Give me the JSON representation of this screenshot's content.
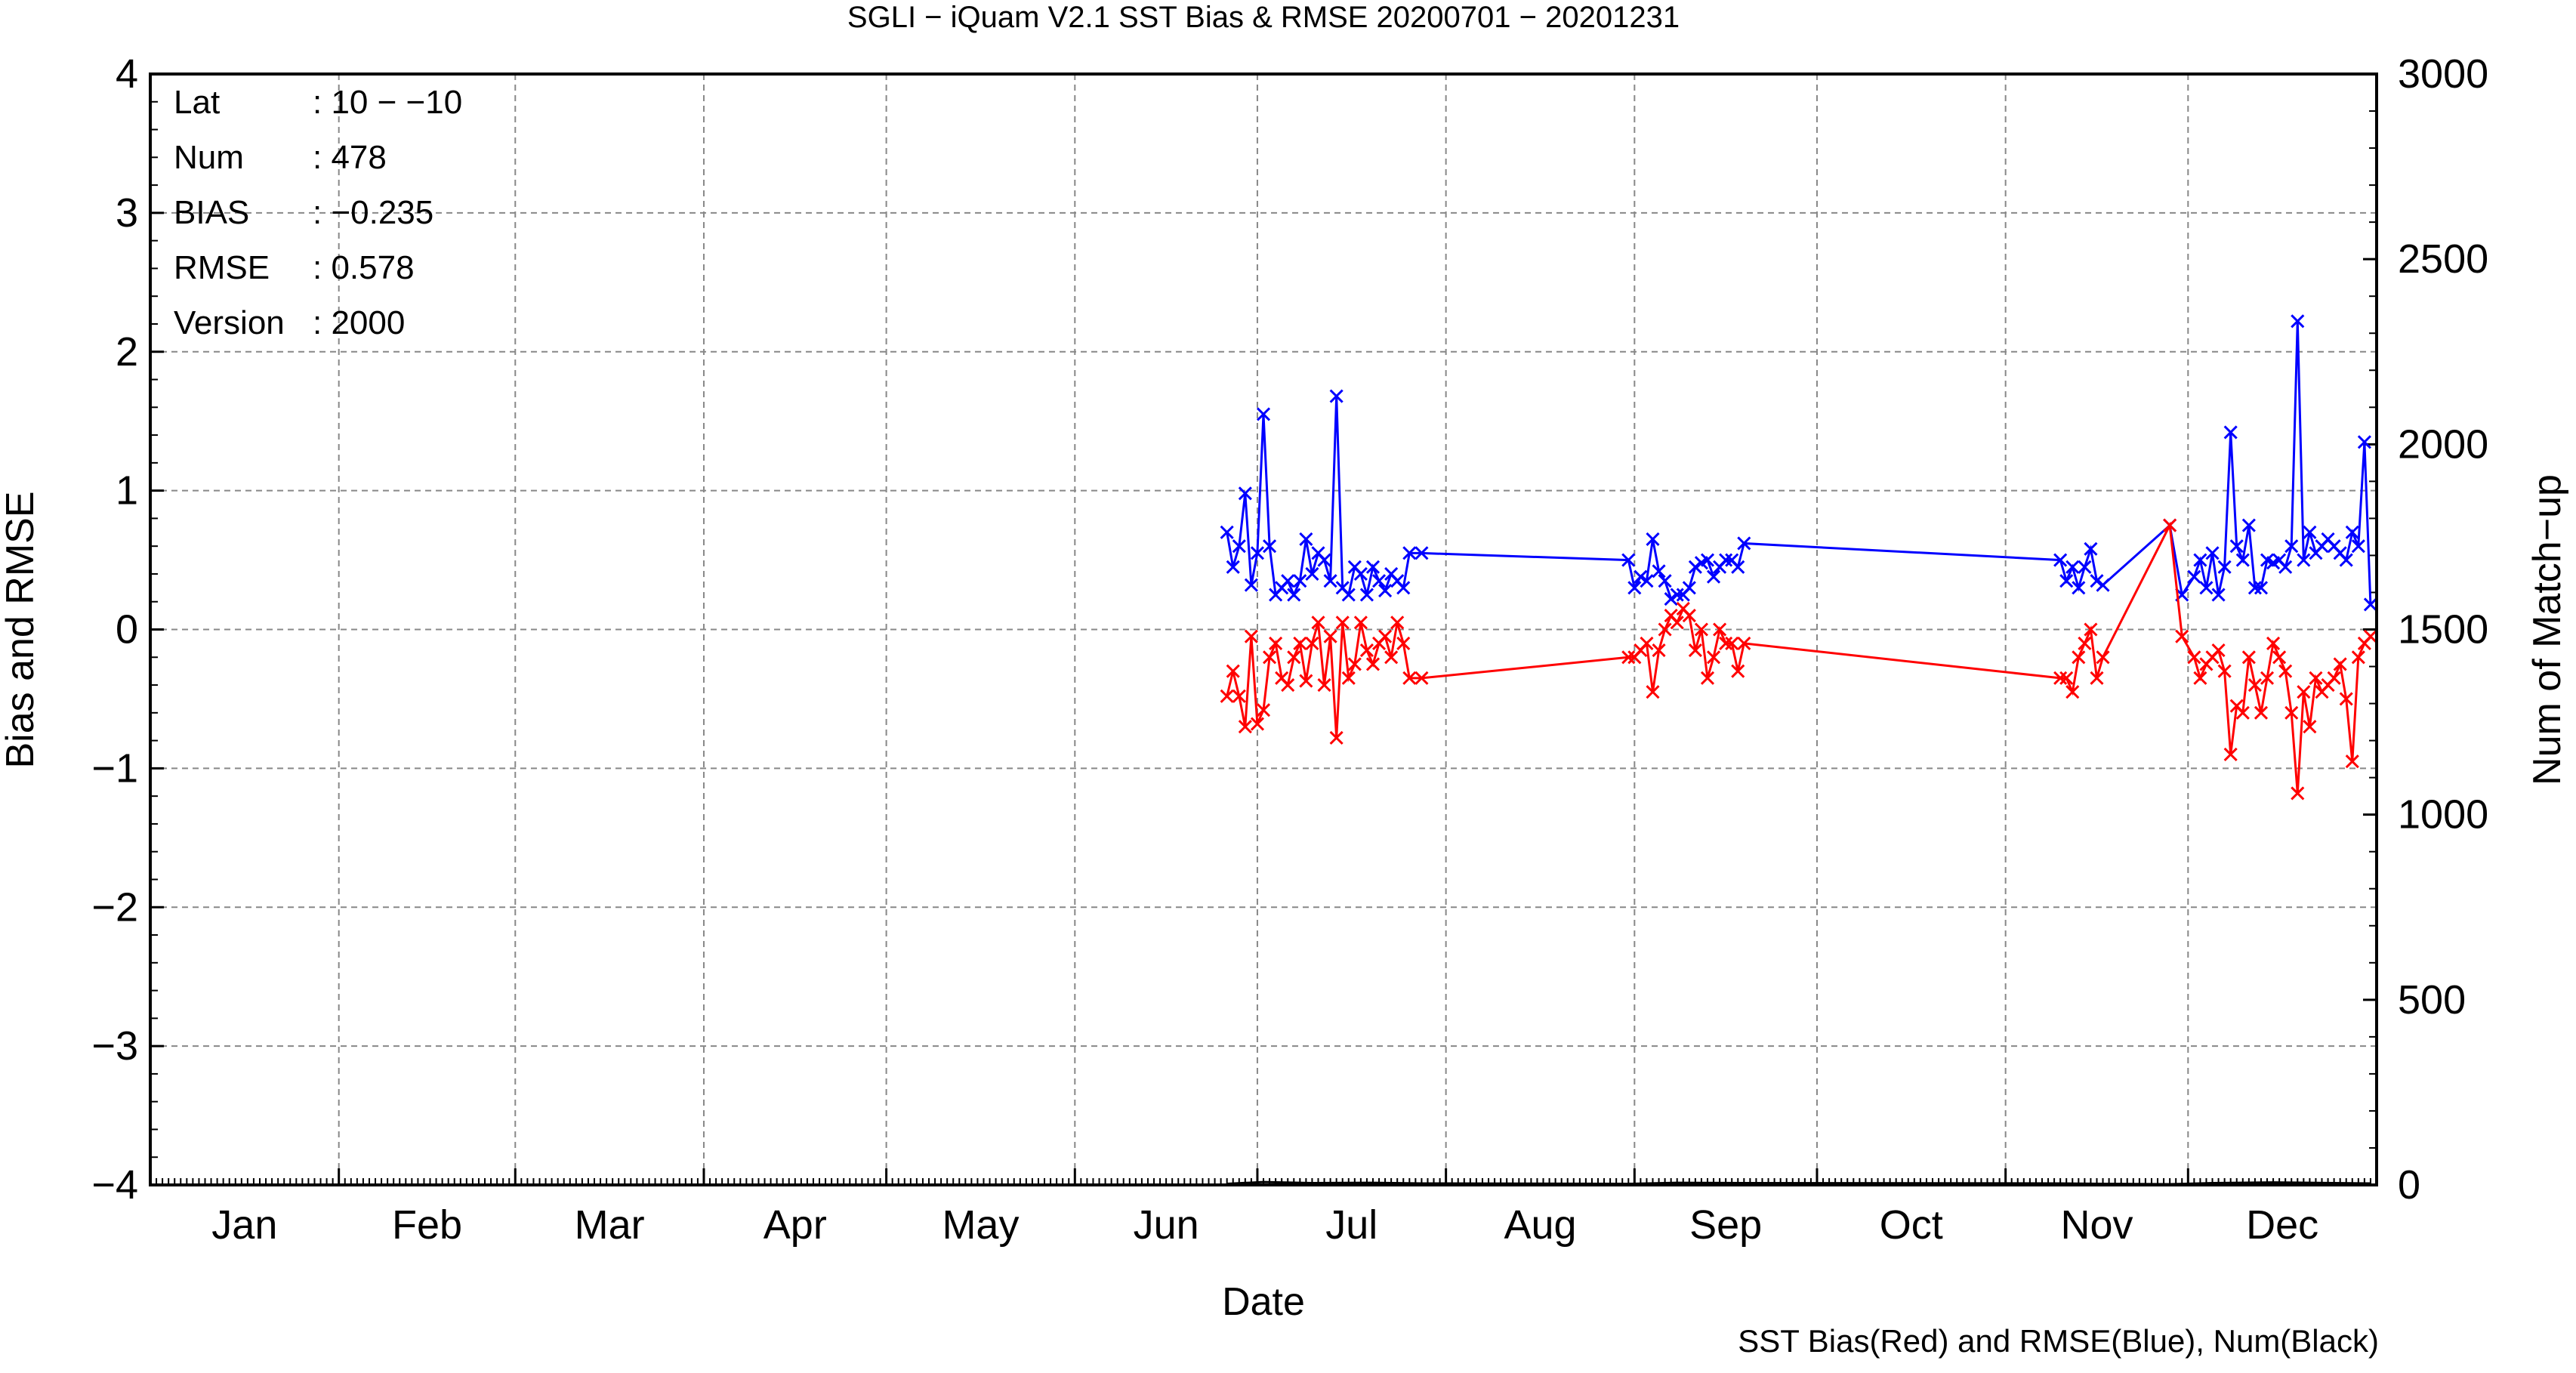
{
  "chart_data": {
    "type": "line",
    "title": "SGLI − iQuam V2.1 SST Bias & RMSE 20200701 − 20201231",
    "xlabel": "Date",
    "ylabel": "Bias and RMSE",
    "y2label": "Num of Match−up",
    "footer": "SST Bias(Red) and RMSE(Blue), Num(Black)",
    "x_ticks": [
      "Jan",
      "Feb",
      "Mar",
      "Apr",
      "May",
      "Jun",
      "Jul",
      "Aug",
      "Sep",
      "Oct",
      "Nov",
      "Dec"
    ],
    "y_ticks": [
      "−4",
      "−3",
      "−2",
      "−1",
      "0",
      "1",
      "2",
      "3",
      "4"
    ],
    "y2_ticks": [
      "0",
      "500",
      "1000",
      "1500",
      "2000",
      "2500",
      "3000"
    ],
    "ylim": [
      -4,
      4
    ],
    "y2lim": [
      0,
      3000
    ],
    "grid": true,
    "info": [
      {
        "key": "Lat",
        "value": ": 10 − −10"
      },
      {
        "key": "Num",
        "value": ": 478"
      },
      {
        "key": "BIAS",
        "value": ": −0.235"
      },
      {
        "key": "RMSE",
        "value": ": 0.578"
      },
      {
        "key": "Version",
        "value": ": 2000"
      }
    ],
    "series": [
      {
        "color": "#0000ff",
        "x": [
          "2020-06-26",
          "2020-06-27",
          "2020-06-28",
          "2020-06-29",
          "2020-06-30",
          "2020-07-01",
          "2020-07-02",
          "2020-07-03",
          "2020-07-04",
          "2020-07-05",
          "2020-07-06",
          "2020-07-07",
          "2020-07-08",
          "2020-07-09",
          "2020-07-10",
          "2020-07-11",
          "2020-07-12",
          "2020-07-13",
          "2020-07-14",
          "2020-07-15",
          "2020-07-16",
          "2020-07-17",
          "2020-07-18",
          "2020-07-19",
          "2020-07-20",
          "2020-07-21",
          "2020-07-22",
          "2020-07-23",
          "2020-07-24",
          "2020-07-25",
          "2020-07-26",
          "2020-07-28",
          "2020-08-31",
          "2020-09-01",
          "2020-09-02",
          "2020-09-03",
          "2020-09-04",
          "2020-09-05",
          "2020-09-06",
          "2020-09-07",
          "2020-09-08",
          "2020-09-09",
          "2020-09-10",
          "2020-09-11",
          "2020-09-12",
          "2020-09-13",
          "2020-09-14",
          "2020-09-15",
          "2020-09-16",
          "2020-09-17",
          "2020-09-18",
          "2020-09-19",
          "2020-11-10",
          "2020-11-11",
          "2020-11-12",
          "2020-11-13",
          "2020-11-14",
          "2020-11-15",
          "2020-11-16",
          "2020-11-17",
          "2020-11-28",
          "2020-11-30",
          "2020-12-02",
          "2020-12-03",
          "2020-12-04",
          "2020-12-05",
          "2020-12-06",
          "2020-12-07",
          "2020-12-08",
          "2020-12-09",
          "2020-12-10",
          "2020-12-11",
          "2020-12-12",
          "2020-12-13",
          "2020-12-14",
          "2020-12-15",
          "2020-12-16",
          "2020-12-17",
          "2020-12-18",
          "2020-12-19",
          "2020-12-20",
          "2020-12-21",
          "2020-12-22",
          "2020-12-23",
          "2020-12-24",
          "2020-12-25",
          "2020-12-26",
          "2020-12-27",
          "2020-12-28",
          "2020-12-29",
          "2020-12-30",
          "2020-12-31"
        ],
        "values": [
          0.7,
          0.45,
          0.6,
          0.98,
          0.32,
          0.55,
          1.55,
          0.6,
          0.25,
          0.3,
          0.35,
          0.25,
          0.35,
          0.65,
          0.4,
          0.55,
          0.5,
          0.35,
          1.68,
          0.3,
          0.25,
          0.45,
          0.4,
          0.25,
          0.45,
          0.35,
          0.28,
          0.4,
          0.35,
          0.3,
          0.55,
          0.55,
          0.5,
          0.3,
          0.38,
          0.35,
          0.65,
          0.42,
          0.35,
          0.22,
          0.25,
          0.25,
          0.3,
          0.45,
          0.48,
          0.5,
          0.38,
          0.45,
          0.5,
          0.5,
          0.45,
          0.62,
          0.5,
          0.35,
          0.45,
          0.3,
          0.45,
          0.58,
          0.35,
          0.32,
          0.75,
          0.25,
          0.38,
          0.5,
          0.3,
          0.55,
          0.25,
          0.45,
          1.42,
          0.6,
          0.5,
          0.75,
          0.3,
          0.3,
          0.5,
          0.48,
          0.5,
          0.45,
          0.6,
          2.22,
          0.5,
          0.7,
          0.55,
          0.6,
          0.65,
          0.6,
          0.55,
          0.5,
          0.7,
          0.6,
          1.35,
          0.18
        ]
      },
      {
        "color": "#ff0000",
        "x": [
          "2020-06-26",
          "2020-06-27",
          "2020-06-28",
          "2020-06-29",
          "2020-06-30",
          "2020-07-01",
          "2020-07-02",
          "2020-07-03",
          "2020-07-04",
          "2020-07-05",
          "2020-07-06",
          "2020-07-07",
          "2020-07-08",
          "2020-07-09",
          "2020-07-10",
          "2020-07-11",
          "2020-07-12",
          "2020-07-13",
          "2020-07-14",
          "2020-07-15",
          "2020-07-16",
          "2020-07-17",
          "2020-07-18",
          "2020-07-19",
          "2020-07-20",
          "2020-07-21",
          "2020-07-22",
          "2020-07-23",
          "2020-07-24",
          "2020-07-25",
          "2020-07-26",
          "2020-07-28",
          "2020-08-31",
          "2020-09-01",
          "2020-09-02",
          "2020-09-03",
          "2020-09-04",
          "2020-09-05",
          "2020-09-06",
          "2020-09-07",
          "2020-09-08",
          "2020-09-09",
          "2020-09-10",
          "2020-09-11",
          "2020-09-12",
          "2020-09-13",
          "2020-09-14",
          "2020-09-15",
          "2020-09-16",
          "2020-09-17",
          "2020-09-18",
          "2020-09-19",
          "2020-11-10",
          "2020-11-11",
          "2020-11-12",
          "2020-11-13",
          "2020-11-14",
          "2020-11-15",
          "2020-11-16",
          "2020-11-17",
          "2020-11-28",
          "2020-11-30",
          "2020-12-02",
          "2020-12-03",
          "2020-12-04",
          "2020-12-05",
          "2020-12-06",
          "2020-12-07",
          "2020-12-08",
          "2020-12-09",
          "2020-12-10",
          "2020-12-11",
          "2020-12-12",
          "2020-12-13",
          "2020-12-14",
          "2020-12-15",
          "2020-12-16",
          "2020-12-17",
          "2020-12-18",
          "2020-12-19",
          "2020-12-20",
          "2020-12-21",
          "2020-12-22",
          "2020-12-23",
          "2020-12-24",
          "2020-12-25",
          "2020-12-26",
          "2020-12-27",
          "2020-12-28",
          "2020-12-29",
          "2020-12-30",
          "2020-12-31"
        ],
        "values": [
          -0.48,
          -0.3,
          -0.48,
          -0.7,
          -0.05,
          -0.68,
          -0.58,
          -0.2,
          -0.1,
          -0.35,
          -0.4,
          -0.2,
          -0.1,
          -0.37,
          -0.1,
          0.05,
          -0.4,
          -0.05,
          -0.78,
          0.05,
          -0.35,
          -0.25,
          0.05,
          -0.15,
          -0.25,
          -0.1,
          -0.05,
          -0.2,
          0.05,
          -0.1,
          -0.35,
          -0.35,
          -0.2,
          -0.2,
          -0.15,
          -0.1,
          -0.45,
          -0.15,
          0.0,
          0.1,
          0.05,
          0.15,
          0.1,
          -0.15,
          0.0,
          -0.35,
          -0.2,
          0.0,
          -0.1,
          -0.1,
          -0.3,
          -0.1,
          -0.35,
          -0.35,
          -0.45,
          -0.2,
          -0.1,
          0.0,
          -0.35,
          -0.2,
          0.75,
          -0.05,
          -0.2,
          -0.35,
          -0.25,
          -0.2,
          -0.15,
          -0.3,
          -0.9,
          -0.55,
          -0.6,
          -0.2,
          -0.4,
          -0.6,
          -0.35,
          -0.1,
          -0.2,
          -0.3,
          -0.6,
          -1.18,
          -0.45,
          -0.7,
          -0.35,
          -0.45,
          -0.4,
          -0.35,
          -0.25,
          -0.5,
          -0.95,
          -0.2,
          -0.1,
          -0.05
        ]
      },
      {
        "color": "#000000",
        "x": [
          "2020-06-26",
          "2020-07-02",
          "2020-07-10",
          "2020-07-20",
          "2020-07-28",
          "2020-08-31",
          "2020-09-08",
          "2020-09-19",
          "2020-11-10",
          "2020-11-17",
          "2020-11-28",
          "2020-12-05",
          "2020-12-15",
          "2020-12-25",
          "2020-12-31"
        ],
        "values": [
          3,
          8,
          5,
          6,
          4,
          3,
          6,
          5,
          4,
          3,
          2,
          5,
          7,
          5,
          4
        ]
      }
    ]
  }
}
